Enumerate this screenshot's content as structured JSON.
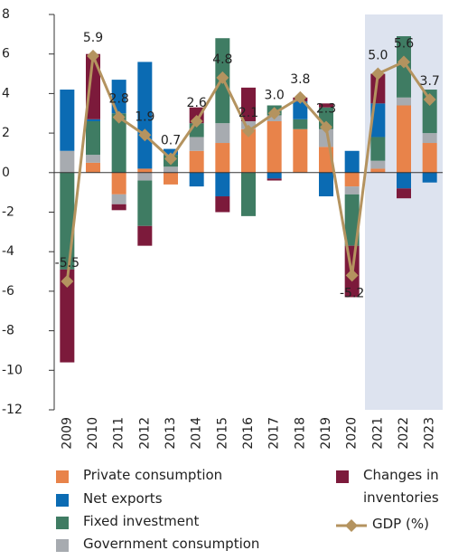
{
  "chart_data": {
    "type": "stacked_bar_line",
    "categories": [
      "2009",
      "2010",
      "2011",
      "2012",
      "2013",
      "2014",
      "2015",
      "2016",
      "2017",
      "2018",
      "2019",
      "2020",
      "2021",
      "2022",
      "2023"
    ],
    "series": [
      {
        "name": "Private consumption",
        "color": "#e8834a",
        "values": [
          0,
          0.5,
          -1.1,
          0.2,
          -0.6,
          1.1,
          1.5,
          2.2,
          2.6,
          2.2,
          1.3,
          -0.7,
          0.2,
          3.4,
          1.5
        ]
      },
      {
        "name": "Government consumption",
        "color": "#a7abb0",
        "values": [
          1.1,
          0.4,
          -0.5,
          -0.4,
          0.3,
          0.7,
          1.0,
          0.4,
          0.3,
          0,
          0.9,
          -0.4,
          0.4,
          0.4,
          0.5
        ]
      },
      {
        "name": "Fixed investment",
        "color": "#3f7c63",
        "values": [
          -4.9,
          1.7,
          3.0,
          -2.3,
          0.6,
          0.7,
          4.3,
          -2.2,
          0.5,
          0.5,
          1.1,
          -2.6,
          1.2,
          3.1,
          2.2
        ]
      },
      {
        "name": "Net exports",
        "color": "#0b6bb3",
        "values": [
          3.1,
          0.1,
          1.7,
          5.4,
          0.3,
          -0.7,
          -1.2,
          0,
          -0.3,
          0.9,
          -1.2,
          1.1,
          1.7,
          -0.8,
          -0.5
        ]
      },
      {
        "name": "Changes in inventories",
        "color": "#7c1a3b",
        "values": [
          -4.7,
          3.3,
          -0.3,
          -1.0,
          0,
          0.8,
          -0.8,
          1.7,
          -0.1,
          0.2,
          0.2,
          -2.6,
          1.5,
          -0.5,
          0
        ]
      },
      {
        "name": "GDP (%)",
        "type": "line",
        "color": "#b4935f",
        "values": [
          -5.5,
          5.9,
          2.8,
          1.9,
          0.7,
          2.6,
          4.8,
          2.1,
          3.0,
          3.8,
          2.3,
          -5.2,
          5.0,
          5.6,
          3.7
        ],
        "value_labels": [
          "-5.5",
          "5.9",
          "2.8",
          "1.9",
          "0.7",
          "2.6",
          "4.8",
          "2.1",
          "3.0",
          "3.8",
          "2.3",
          "-5.2",
          "5.0",
          "5.6",
          "3.7"
        ]
      }
    ],
    "ylim": [
      -12,
      8
    ],
    "yticks": [
      -12,
      -10,
      -8,
      -6,
      -4,
      -2,
      0,
      2,
      4,
      6,
      8
    ],
    "grid": false
  }
}
